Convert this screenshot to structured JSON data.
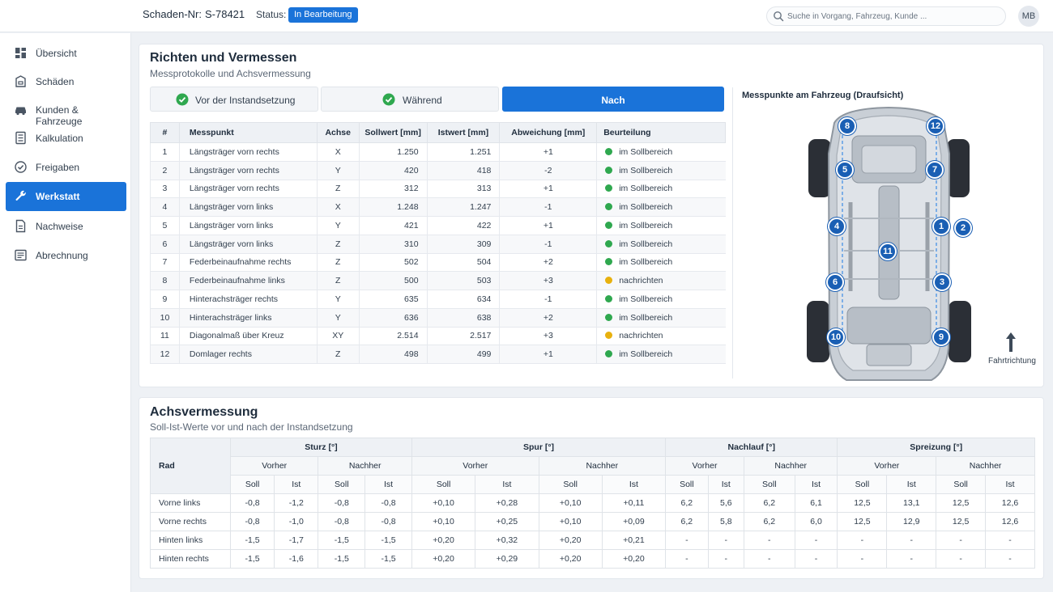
{
  "header": {
    "claim_label": "Schaden-Nr:",
    "claim_value": "S-78421",
    "status_label": "Status:",
    "status_value": "In Bearbeitung",
    "search_placeholder": "Suche in Vorgang, Fahrzeug, Kunde ...",
    "user_initials": "MB"
  },
  "sidebar": {
    "items": [
      {
        "label": "Übersicht",
        "icon": "dashboard-icon"
      },
      {
        "label": "Schäden",
        "icon": "car-damage-icon"
      },
      {
        "label": "Kunden & Fahrzeuge",
        "icon": "car-icon"
      },
      {
        "label": "Kalkulation",
        "icon": "calculator-icon"
      },
      {
        "label": "Freigaben",
        "icon": "check-circle-icon"
      },
      {
        "label": "Werkstatt",
        "icon": "wrench-icon"
      },
      {
        "label": "Nachweise",
        "icon": "document-icon"
      },
      {
        "label": "Abrechnung",
        "icon": "invoice-icon"
      }
    ],
    "active_index": 5
  },
  "measure": {
    "title": "Richten und Vermessen",
    "subtitle": "Messprotokolle und Achsvermessung",
    "stages": [
      {
        "label": "Vor der Instandsetzung",
        "done": true
      },
      {
        "label": "Während",
        "done": true
      },
      {
        "label": "Nach",
        "done": false
      }
    ],
    "active_stage": 2,
    "columns": [
      "#",
      "Messpunkt",
      "Achse",
      "Sollwert [mm]",
      "Istwert [mm]",
      "Abweichung [mm]",
      "Beurteilung"
    ],
    "rows": [
      {
        "nr": "1",
        "point": "Längsträger vorn rechts",
        "axis": "X",
        "soll": "1.250",
        "ist": "1.251",
        "dev": "+1",
        "status": "im Sollbereich",
        "ok": true
      },
      {
        "nr": "2",
        "point": "Längsträger vorn rechts",
        "axis": "Y",
        "soll": "420",
        "ist": "418",
        "dev": "-2",
        "status": "im Sollbereich",
        "ok": true
      },
      {
        "nr": "3",
        "point": "Längsträger vorn rechts",
        "axis": "Z",
        "soll": "312",
        "ist": "313",
        "dev": "+1",
        "status": "im Sollbereich",
        "ok": true
      },
      {
        "nr": "4",
        "point": "Längsträger vorn links",
        "axis": "X",
        "soll": "1.248",
        "ist": "1.247",
        "dev": "-1",
        "status": "im Sollbereich",
        "ok": true
      },
      {
        "nr": "5",
        "point": "Längsträger vorn links",
        "axis": "Y",
        "soll": "421",
        "ist": "422",
        "dev": "+1",
        "status": "im Sollbereich",
        "ok": true
      },
      {
        "nr": "6",
        "point": "Längsträger vorn links",
        "axis": "Z",
        "soll": "310",
        "ist": "309",
        "dev": "-1",
        "status": "im Sollbereich",
        "ok": true
      },
      {
        "nr": "7",
        "point": "Federbeinaufnahme rechts",
        "axis": "Z",
        "soll": "502",
        "ist": "504",
        "dev": "+2",
        "status": "im Sollbereich",
        "ok": true
      },
      {
        "nr": "8",
        "point": "Federbeinaufnahme links",
        "axis": "Z",
        "soll": "500",
        "ist": "503",
        "dev": "+3",
        "status": "nachrichten",
        "ok": false
      },
      {
        "nr": "9",
        "point": "Hinterachsträger rechts",
        "axis": "Y",
        "soll": "635",
        "ist": "634",
        "dev": "-1",
        "status": "im Sollbereich",
        "ok": true
      },
      {
        "nr": "10",
        "point": "Hinterachsträger links",
        "axis": "Y",
        "soll": "636",
        "ist": "638",
        "dev": "+2",
        "status": "im Sollbereich",
        "ok": true
      },
      {
        "nr": "11",
        "point": "Diagonalmaß über Kreuz",
        "axis": "XY",
        "soll": "2.514",
        "ist": "2.517",
        "dev": "+3",
        "status": "nachrichten",
        "ok": false
      },
      {
        "nr": "12",
        "point": "Domlager rechts",
        "axis": "Z",
        "soll": "498",
        "ist": "499",
        "dev": "+1",
        "status": "im Sollbereich",
        "ok": true
      }
    ],
    "colors": {
      "ok": "#2fa84f",
      "warn": "#e8b10e",
      "accent": "#1a73d9"
    },
    "car_label": "Messpunkte am Fahrzeug (Draufsicht)",
    "car_points": [
      "8",
      "12",
      "5",
      "7",
      "4",
      "1",
      "2",
      "11",
      "6",
      "3",
      "10",
      "9"
    ],
    "direction_label": "Fahrtrichtung"
  },
  "axle": {
    "title": "Achsvermessung",
    "subtitle": "Soll-Ist-Werte vor und nach der Instandsetzung",
    "rad_header": "Rad",
    "groups": [
      "Sturz [°]",
      "Spur [°]",
      "Nachlauf [°]",
      "Spreizung [°]"
    ],
    "phases": [
      "Vorher",
      "Nachher"
    ],
    "subcols": [
      "Soll",
      "Ist"
    ],
    "rows": [
      {
        "rad": "Vorne links",
        "values": [
          "-0,8",
          "-1,2",
          "-0,8",
          "-0,8",
          "+0,10",
          "+0,28",
          "+0,10",
          "+0,11",
          "6,2",
          "5,6",
          "6,2",
          "6,1",
          "12,5",
          "13,1",
          "12,5",
          "12,6"
        ]
      },
      {
        "rad": "Vorne rechts",
        "values": [
          "-0,8",
          "-1,0",
          "-0,8",
          "-0,8",
          "+0,10",
          "+0,25",
          "+0,10",
          "+0,09",
          "6,2",
          "5,8",
          "6,2",
          "6,0",
          "12,5",
          "12,9",
          "12,5",
          "12,6"
        ]
      },
      {
        "rad": "Hinten links",
        "values": [
          "-1,5",
          "-1,7",
          "-1,5",
          "-1,5",
          "+0,20",
          "+0,32",
          "+0,20",
          "+0,21",
          "-",
          "-",
          "-",
          "-",
          "-",
          "-",
          "-",
          "-"
        ]
      },
      {
        "rad": "Hinten rechts",
        "values": [
          "-1,5",
          "-1,6",
          "-1,5",
          "-1,5",
          "+0,20",
          "+0,29",
          "+0,20",
          "+0,20",
          "-",
          "-",
          "-",
          "-",
          "-",
          "-",
          "-",
          "-"
        ]
      }
    ]
  }
}
